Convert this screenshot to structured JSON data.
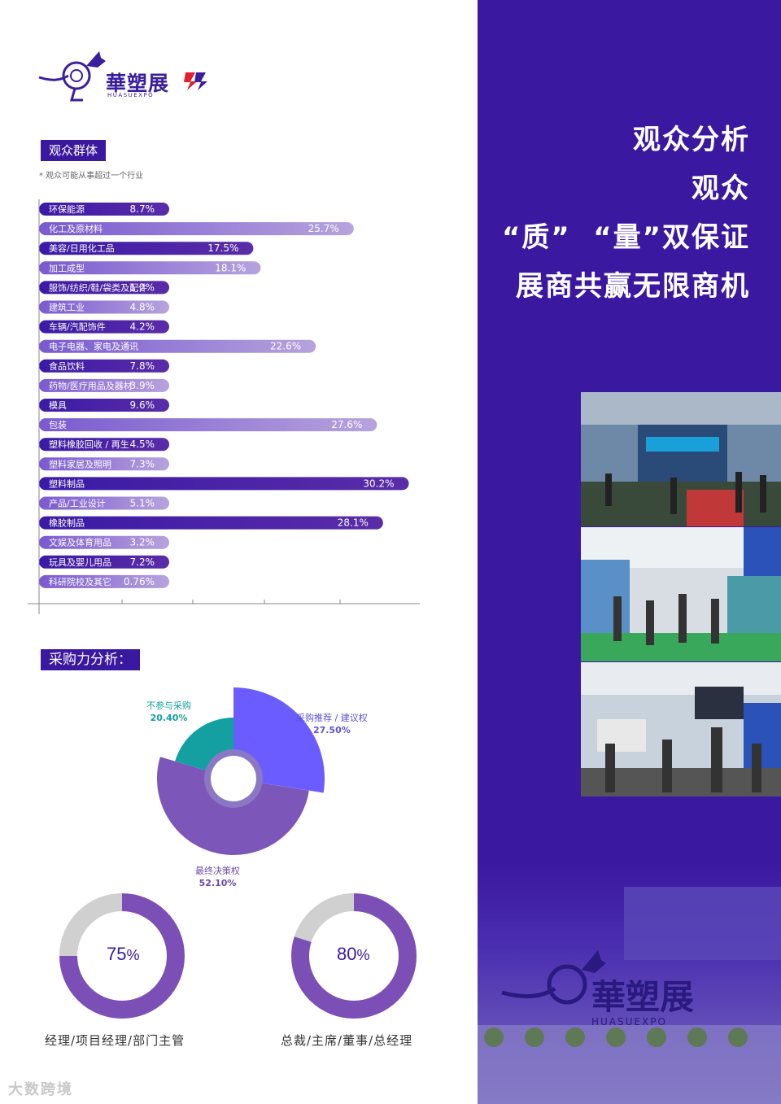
{
  "logo": {
    "name": "華塑展",
    "sub": "HUASUEXPO"
  },
  "audience": {
    "tag": "观众群体",
    "note": "* 观众可能从事超过一个行业"
  },
  "chart_data": [
    {
      "type": "bar",
      "orientation": "horizontal",
      "xlim": [
        0,
        35
      ],
      "categories": [
        "环保能源",
        "化工及原材料",
        "美容/日用化工品",
        "加工成型",
        "服饰/纺织/鞋/袋类及配件",
        "建筑工业",
        "车辆/汽配饰件",
        "电子电器、家电及通讯",
        "食品饮料",
        "药物/医疗用品及器材",
        "模具",
        "包装",
        "塑料橡胶回收 / 再生",
        "塑料家居及照明",
        "塑料制品",
        "产品/工业设计",
        "橡胶制品",
        "文娱及体育用品",
        "玩具及婴儿用品",
        "科研院校及其它"
      ],
      "values": [
        8.7,
        25.7,
        17.5,
        18.1,
        1.2,
        4.8,
        4.2,
        22.6,
        7.8,
        3.9,
        9.6,
        27.6,
        4.5,
        7.3,
        30.2,
        5.1,
        28.1,
        3.2,
        7.2,
        0.76
      ],
      "value_labels": [
        "8.7%",
        "25.7%",
        "17.5%",
        "18.1%",
        "1.2%",
        "4.8%",
        "4.2%",
        "22.6%",
        "7.8%",
        "3.9%",
        "9.6%",
        "27.6%",
        "4.5%",
        "7.3%",
        "30.2%",
        "5.1%",
        "28.1%",
        "3.2%",
        "7.2%",
        "0.76%"
      ]
    },
    {
      "type": "pie",
      "title": "采购力分析：",
      "slices": [
        {
          "label": "采购推荐 / 建议权",
          "value": 27.5,
          "value_label": "27.50%",
          "color": "#6a5cff"
        },
        {
          "label": "最终决策权",
          "value": 52.1,
          "value_label": "52.10%",
          "color": "#7c56b8"
        },
        {
          "label": "不参与采购",
          "value": 20.4,
          "value_label": "20.40%",
          "color": "#14a0a0"
        }
      ]
    },
    {
      "type": "pie",
      "variant": "donut",
      "slices": [
        {
          "label": "经理/项目经理/部门主管",
          "value": 75,
          "value_label": "75%",
          "color": "#7b4fb6"
        },
        {
          "label": "",
          "value": 25,
          "color": "#d0d0d0"
        }
      ]
    },
    {
      "type": "pie",
      "variant": "donut",
      "slices": [
        {
          "label": "总裁/主席/董事/总经理",
          "value": 80,
          "value_label": "80%",
          "color": "#7b4fb6"
        },
        {
          "label": "",
          "value": 20,
          "color": "#d0d0d0"
        }
      ]
    }
  ],
  "purchase": {
    "tag": "采购力分析："
  },
  "rings": [
    {
      "num": "75",
      "unit": "%",
      "caption": "经理/项目经理/部门主管"
    },
    {
      "num": "80",
      "unit": "%",
      "caption": "总裁/主席/董事/总经理"
    }
  ],
  "headline": [
    "观众分析",
    "观众",
    "“质”  “量”双保证",
    "展商共赢无限商机"
  ],
  "watermark": "大数跨境",
  "colors": {
    "brand": "#3b18a0",
    "teal": "#14a0a0",
    "blue": "#6a5cff",
    "violet": "#7c56b8"
  }
}
